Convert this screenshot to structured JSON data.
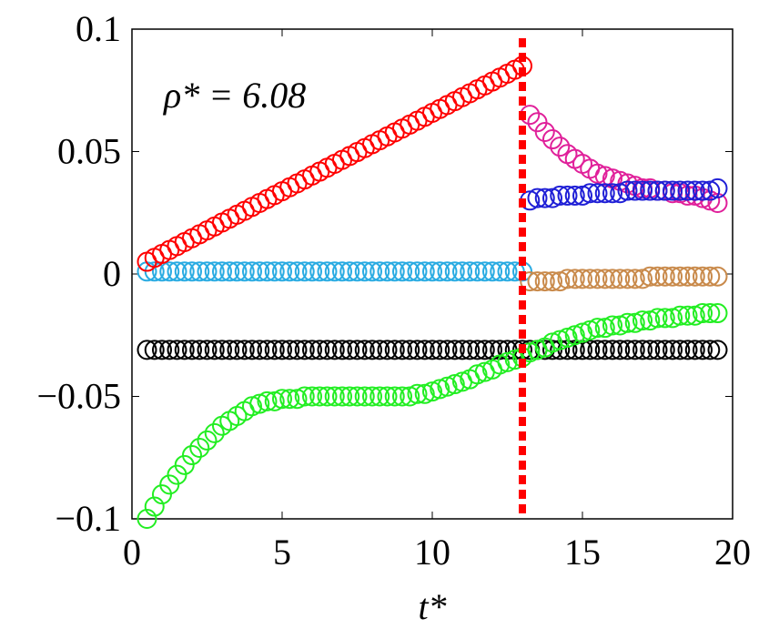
{
  "chart_data": {
    "type": "scatter",
    "annotation": "ρ* = 6.08",
    "xlabel": "t*",
    "xlim": [
      0,
      20
    ],
    "xticks": [
      0,
      5,
      10,
      15,
      20
    ],
    "ylim": [
      -0.1,
      0.1
    ],
    "yticks": [
      {
        "value": -0.1,
        "label": "−0.1"
      },
      {
        "value": -0.05,
        "label": "−0.05"
      },
      0,
      0.05,
      0.1
    ],
    "vline": {
      "x": 13,
      "color": "#ff0000"
    },
    "x": [
      0.5,
      0.75,
      1,
      1.25,
      1.5,
      1.75,
      2,
      2.25,
      2.5,
      2.75,
      3,
      3.25,
      3.5,
      3.75,
      4,
      4.25,
      4.5,
      4.75,
      5,
      5.25,
      5.5,
      5.75,
      6,
      6.25,
      6.5,
      6.75,
      7,
      7.25,
      7.5,
      7.75,
      8,
      8.25,
      8.5,
      8.75,
      9,
      9.25,
      9.5,
      9.75,
      10,
      10.25,
      10.5,
      10.75,
      11,
      11.25,
      11.5,
      11.75,
      12,
      12.25,
      12.5,
      12.75,
      13,
      13.25,
      13.5,
      13.75,
      14,
      14.25,
      14.5,
      14.75,
      15,
      15.25,
      15.5,
      15.75,
      16,
      16.25,
      16.5,
      16.75,
      17,
      17.25,
      17.5,
      17.75,
      18,
      18.25,
      18.5,
      18.75,
      19,
      19.25,
      19.5
    ],
    "series": [
      {
        "color": "#000000",
        "values": [
          -0.031,
          -0.031,
          -0.031,
          -0.031,
          -0.031,
          -0.031,
          -0.031,
          -0.031,
          -0.031,
          -0.031,
          -0.031,
          -0.031,
          -0.031,
          -0.031,
          -0.031,
          -0.031,
          -0.031,
          -0.031,
          -0.031,
          -0.031,
          -0.031,
          -0.031,
          -0.031,
          -0.031,
          -0.031,
          -0.031,
          -0.031,
          -0.031,
          -0.031,
          -0.031,
          -0.031,
          -0.031,
          -0.031,
          -0.031,
          -0.031,
          -0.031,
          -0.031,
          -0.031,
          -0.031,
          -0.031,
          -0.031,
          -0.031,
          -0.031,
          -0.031,
          -0.031,
          -0.031,
          -0.031,
          -0.031,
          -0.031,
          -0.031,
          -0.031,
          -0.031,
          -0.031,
          -0.031,
          -0.031,
          -0.031,
          -0.031,
          -0.031,
          -0.031,
          -0.031,
          -0.031,
          -0.031,
          -0.031,
          -0.031,
          -0.031,
          -0.031,
          -0.031,
          -0.031,
          -0.031,
          -0.031,
          -0.031,
          -0.031,
          -0.031,
          -0.031,
          -0.031,
          -0.031,
          -0.031
        ]
      },
      {
        "color": "#22ee22",
        "values": [
          -0.1,
          -0.095,
          -0.09,
          -0.086,
          -0.082,
          -0.078,
          -0.074,
          -0.071,
          -0.068,
          -0.065,
          -0.062,
          -0.06,
          -0.058,
          -0.056,
          -0.054,
          -0.053,
          -0.052,
          -0.052,
          -0.051,
          -0.051,
          -0.051,
          -0.05,
          -0.05,
          -0.05,
          -0.05,
          -0.05,
          -0.05,
          -0.05,
          -0.05,
          -0.05,
          -0.05,
          -0.05,
          -0.05,
          -0.05,
          -0.05,
          -0.05,
          -0.049,
          -0.049,
          -0.048,
          -0.047,
          -0.046,
          -0.045,
          -0.044,
          -0.043,
          -0.041,
          -0.04,
          -0.039,
          -0.037,
          -0.036,
          -0.035,
          -0.034,
          -0.032,
          -0.031,
          -0.03,
          -0.028,
          -0.027,
          -0.026,
          -0.025,
          -0.024,
          -0.023,
          -0.022,
          -0.022,
          -0.021,
          -0.021,
          -0.02,
          -0.02,
          -0.019,
          -0.019,
          -0.018,
          -0.018,
          -0.018,
          -0.017,
          -0.017,
          -0.017,
          -0.016,
          -0.016,
          -0.016
        ]
      },
      {
        "color": "#29abe2",
        "values": [
          0.001,
          0.001,
          0.001,
          0.001,
          0.001,
          0.001,
          0.001,
          0.001,
          0.001,
          0.001,
          0.001,
          0.001,
          0.001,
          0.001,
          0.001,
          0.001,
          0.001,
          0.001,
          0.001,
          0.001,
          0.001,
          0.001,
          0.001,
          0.001,
          0.001,
          0.001,
          0.001,
          0.001,
          0.001,
          0.001,
          0.001,
          0.001,
          0.001,
          0.001,
          0.001,
          0.001,
          0.001,
          0.001,
          0.001,
          0.001,
          0.001,
          0.001,
          0.001,
          0.001,
          0.001,
          0.001,
          0.001,
          0.001,
          0.001,
          0.001,
          0.001,
          null,
          null,
          null,
          null,
          null,
          null,
          null,
          null,
          null,
          null,
          null,
          null,
          null,
          null,
          null,
          null,
          null,
          null,
          null,
          null,
          null,
          null,
          null,
          null,
          null,
          null
        ]
      },
      {
        "color": "#ff0000",
        "values": [
          0.005,
          0.0066,
          0.0082,
          0.0098,
          0.0114,
          0.013,
          0.0146,
          0.0162,
          0.0178,
          0.0194,
          0.021,
          0.0226,
          0.0242,
          0.0258,
          0.0274,
          0.029,
          0.0306,
          0.0322,
          0.0338,
          0.0354,
          0.037,
          0.0386,
          0.0402,
          0.0418,
          0.0434,
          0.045,
          0.0466,
          0.0482,
          0.0498,
          0.0514,
          0.053,
          0.0546,
          0.0562,
          0.0578,
          0.0594,
          0.061,
          0.0626,
          0.0642,
          0.0658,
          0.0674,
          0.069,
          0.0706,
          0.0722,
          0.0738,
          0.0754,
          0.077,
          0.0786,
          0.0802,
          0.0818,
          0.0834,
          0.085,
          null,
          null,
          null,
          null,
          null,
          null,
          null,
          null,
          null,
          null,
          null,
          null,
          null,
          null,
          null,
          null,
          null,
          null,
          null,
          null,
          null,
          null,
          null,
          null,
          null,
          null
        ]
      },
      {
        "color": "#c98a4b",
        "values": [
          null,
          null,
          null,
          null,
          null,
          null,
          null,
          null,
          null,
          null,
          null,
          null,
          null,
          null,
          null,
          null,
          null,
          null,
          null,
          null,
          null,
          null,
          null,
          null,
          null,
          null,
          null,
          null,
          null,
          null,
          null,
          null,
          null,
          null,
          null,
          null,
          null,
          null,
          null,
          null,
          null,
          null,
          null,
          null,
          null,
          null,
          null,
          null,
          null,
          null,
          null,
          -0.003,
          -0.003,
          -0.003,
          -0.003,
          -0.003,
          -0.002,
          -0.002,
          -0.002,
          -0.002,
          -0.002,
          -0.002,
          -0.002,
          -0.002,
          -0.002,
          -0.002,
          -0.002,
          -0.001,
          -0.001,
          -0.001,
          -0.001,
          -0.001,
          -0.001,
          -0.001,
          -0.001,
          -0.001,
          -0.001
        ]
      },
      {
        "color": "#e0209a",
        "values": [
          null,
          null,
          null,
          null,
          null,
          null,
          null,
          null,
          null,
          null,
          null,
          null,
          null,
          null,
          null,
          null,
          null,
          null,
          null,
          null,
          null,
          null,
          null,
          null,
          null,
          null,
          null,
          null,
          null,
          null,
          null,
          null,
          null,
          null,
          null,
          null,
          null,
          null,
          null,
          null,
          null,
          null,
          null,
          null,
          null,
          null,
          null,
          null,
          null,
          null,
          null,
          0.065,
          0.062,
          0.058,
          0.055,
          0.052,
          0.049,
          0.047,
          0.045,
          0.043,
          0.041,
          0.04,
          0.039,
          0.038,
          0.037,
          0.036,
          0.035,
          0.035,
          0.034,
          0.034,
          0.033,
          0.033,
          0.032,
          0.032,
          0.031,
          0.03,
          0.029
        ]
      },
      {
        "color": "#1f1fd6",
        "values": [
          null,
          null,
          null,
          null,
          null,
          null,
          null,
          null,
          null,
          null,
          null,
          null,
          null,
          null,
          null,
          null,
          null,
          null,
          null,
          null,
          null,
          null,
          null,
          null,
          null,
          null,
          null,
          null,
          null,
          null,
          null,
          null,
          null,
          null,
          null,
          null,
          null,
          null,
          null,
          null,
          null,
          null,
          null,
          null,
          null,
          null,
          null,
          null,
          null,
          null,
          null,
          0.03,
          0.031,
          0.031,
          0.031,
          0.032,
          0.032,
          0.032,
          0.032,
          0.033,
          0.033,
          0.033,
          0.033,
          0.033,
          0.034,
          0.034,
          0.034,
          0.034,
          0.034,
          0.034,
          0.034,
          0.034,
          0.034,
          0.034,
          0.034,
          0.034,
          0.035
        ]
      }
    ]
  }
}
